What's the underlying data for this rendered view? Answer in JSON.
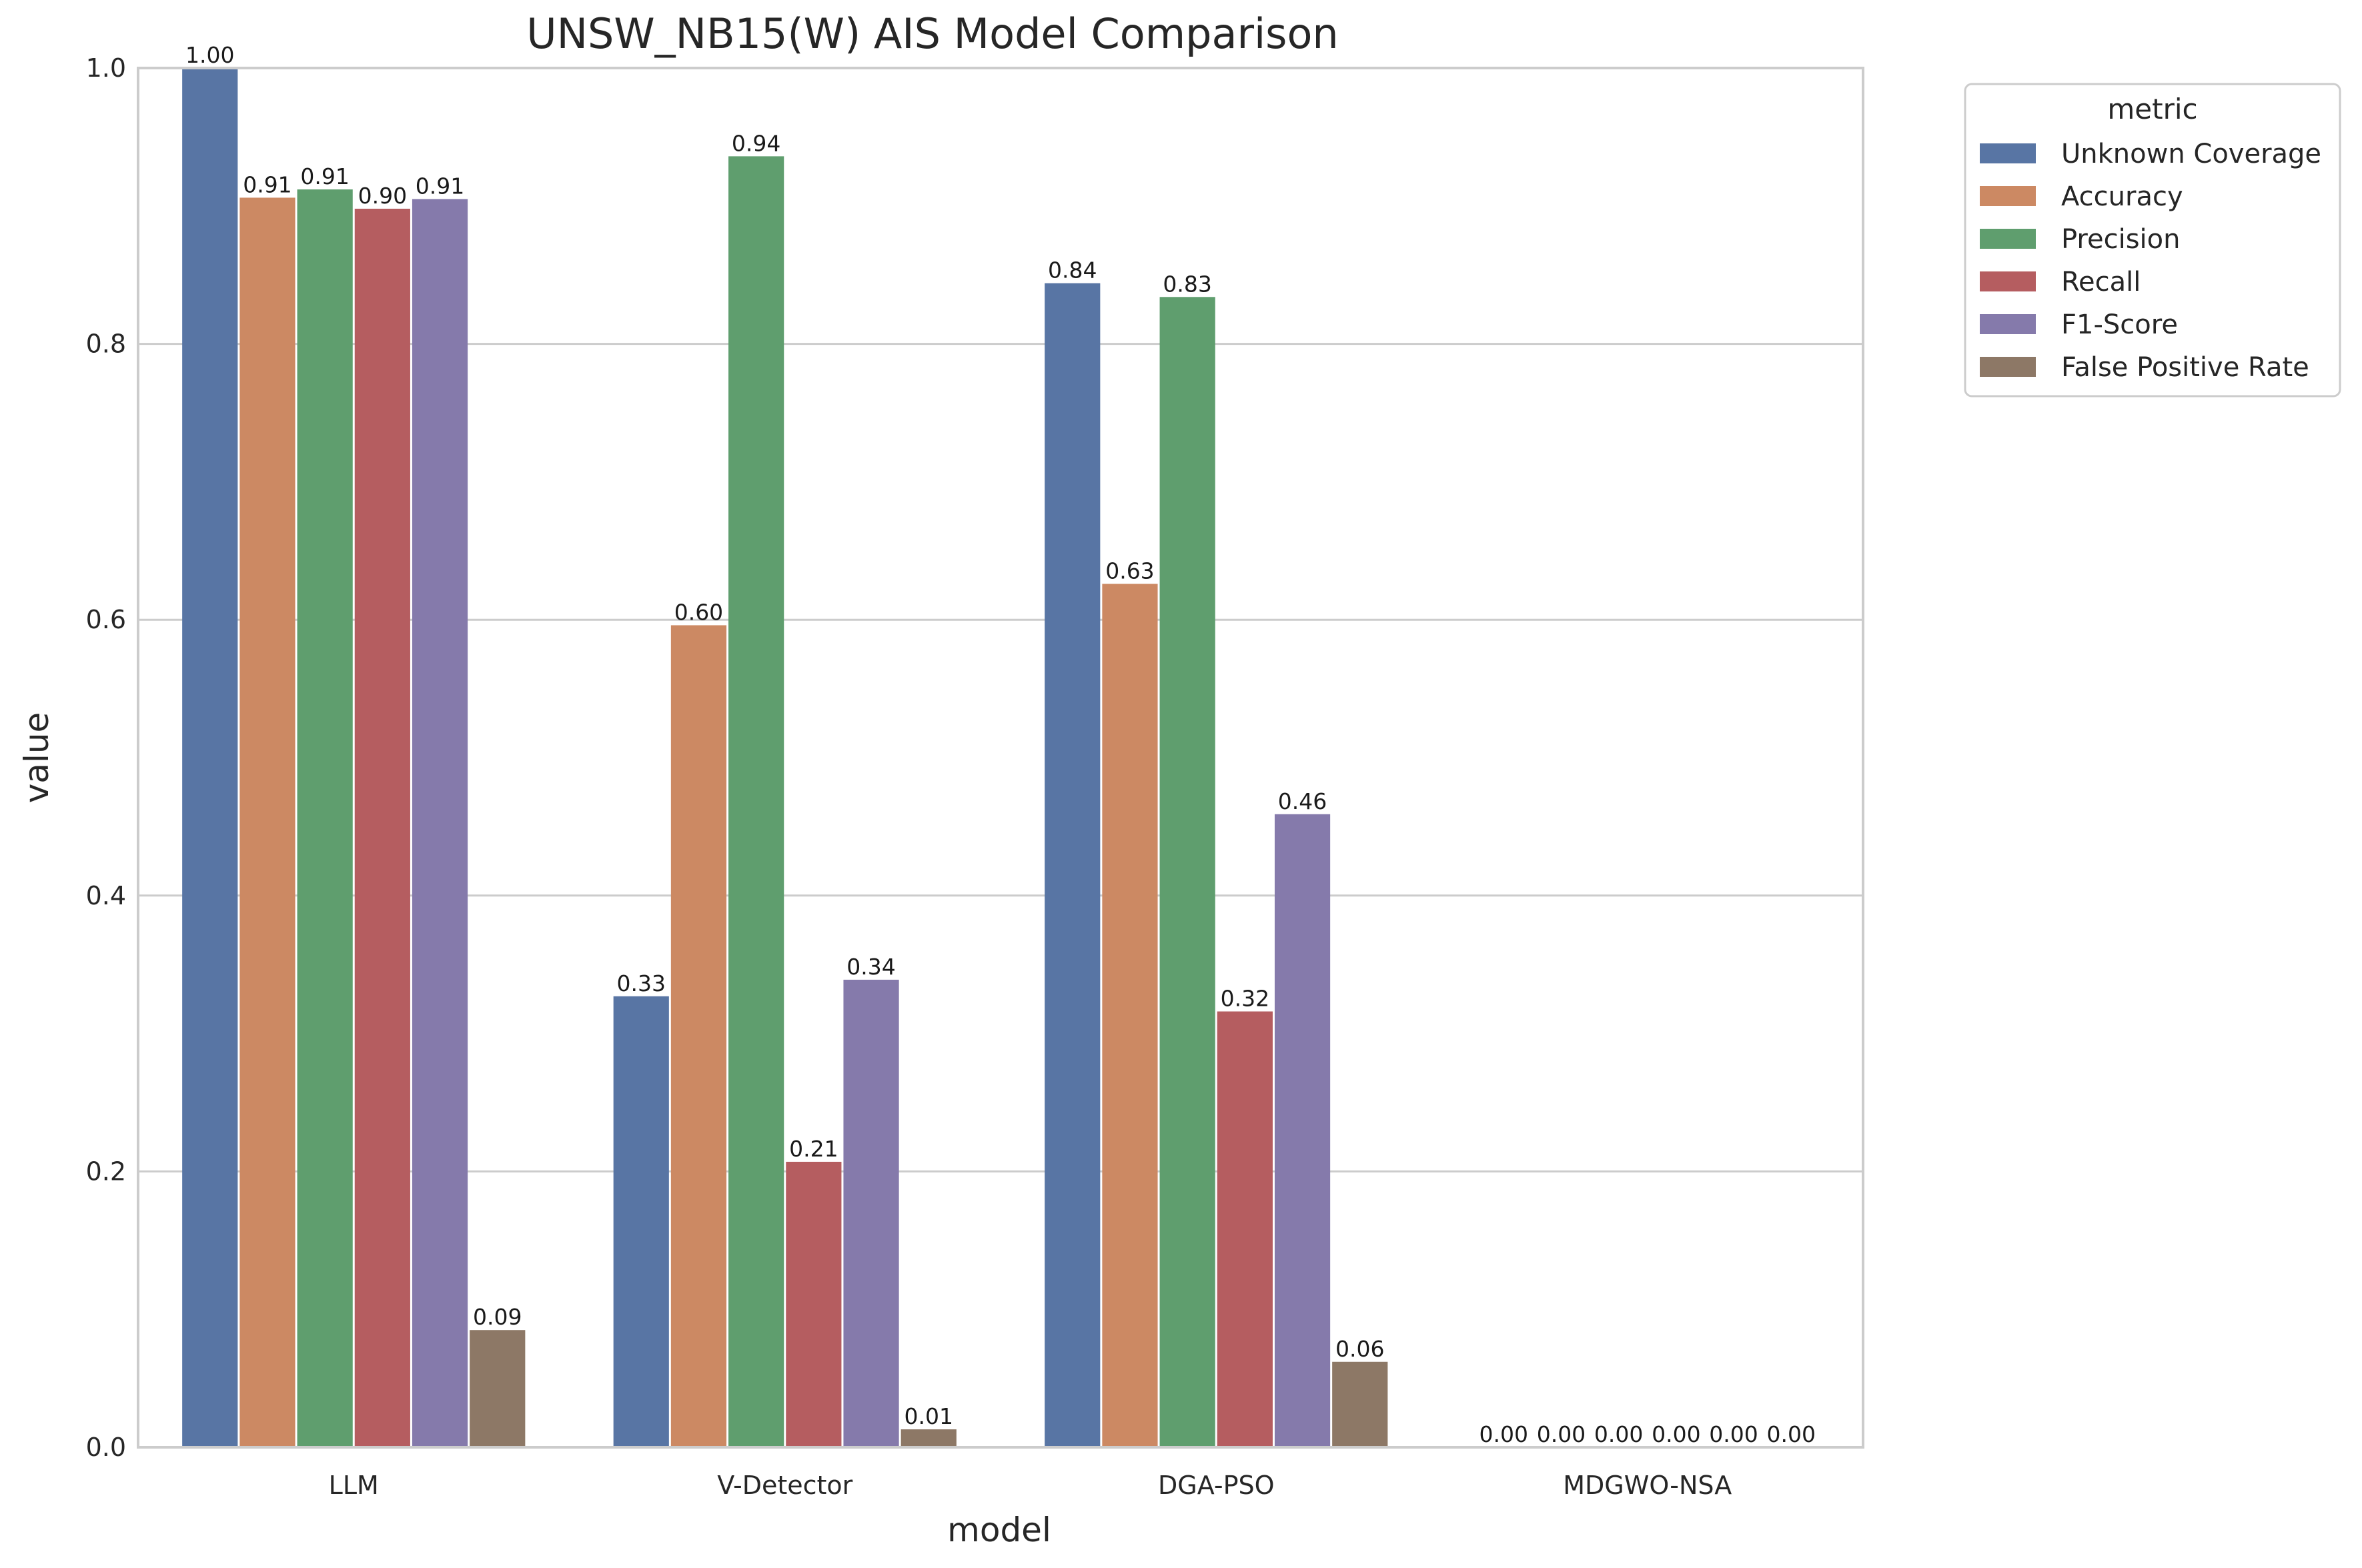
{
  "chart_data": {
    "type": "bar",
    "title": "UNSW_NB15(W) AIS Model Comparison",
    "xlabel": "model",
    "ylabel": "value",
    "ylim": [
      0,
      1.0
    ],
    "yticks": [
      "0.0",
      "0.2",
      "0.4",
      "0.6",
      "0.8",
      "1.0"
    ],
    "categories": [
      "LLM",
      "V-Detector",
      "DGA-PSO",
      "MDGWO-NSA"
    ],
    "legend_title": "metric",
    "legend_position": "outside-top-right",
    "grid": "horizontal",
    "series": [
      {
        "name": "Unknown Coverage",
        "color": "#5875a4",
        "values": [
          1.0,
          0.327,
          0.844,
          0.0
        ],
        "labels": [
          "1.00",
          "0.33",
          "0.84",
          "0.00"
        ]
      },
      {
        "name": "Accuracy",
        "color": "#cc8963",
        "values": [
          0.906,
          0.596,
          0.626,
          0.0
        ],
        "labels": [
          "0.91",
          "0.60",
          "0.63",
          "0.00"
        ]
      },
      {
        "name": "Precision",
        "color": "#5f9e6e",
        "values": [
          0.912,
          0.936,
          0.834,
          0.0
        ],
        "labels": [
          "0.91",
          "0.94",
          "0.83",
          "0.00"
        ]
      },
      {
        "name": "Recall",
        "color": "#b55d60",
        "values": [
          0.898,
          0.207,
          0.316,
          0.0
        ],
        "labels": [
          "0.90",
          "0.21",
          "0.32",
          "0.00"
        ]
      },
      {
        "name": "F1-Score",
        "color": "#857aab",
        "values": [
          0.905,
          0.339,
          0.459,
          0.0
        ],
        "labels": [
          "0.91",
          "0.34",
          "0.46",
          "0.00"
        ]
      },
      {
        "name": "False Positive Rate",
        "color": "#8d7866",
        "values": [
          0.085,
          0.013,
          0.062,
          0.0
        ],
        "labels": [
          "0.09",
          "0.01",
          "0.06",
          "0.00"
        ]
      }
    ]
  }
}
